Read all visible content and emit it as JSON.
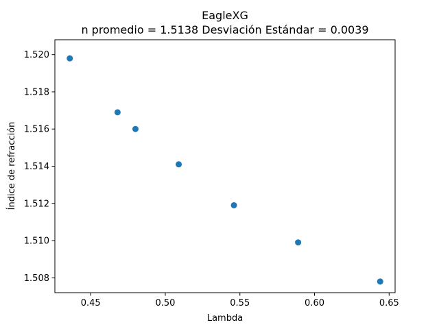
{
  "chart_data": {
    "type": "scatter",
    "title": "EagleXG",
    "subtitle": "n promedio = 1.5138  Desviación Estándar = 0.0039",
    "xlabel": "Lambda",
    "ylabel": "Índice de refracción",
    "xlim": [
      0.426,
      0.654
    ],
    "ylim": [
      1.5072,
      1.5208
    ],
    "xticks": [
      0.45,
      0.5,
      0.55,
      0.6,
      0.65
    ],
    "xtick_labels": [
      "0.45",
      "0.50",
      "0.55",
      "0.60",
      "0.65"
    ],
    "yticks": [
      1.508,
      1.51,
      1.512,
      1.514,
      1.516,
      1.518,
      1.52
    ],
    "ytick_labels": [
      "1.508",
      "1.510",
      "1.512",
      "1.514",
      "1.516",
      "1.518",
      "1.520"
    ],
    "grid": false,
    "legend": "none",
    "marker_color": "#1f77b4",
    "series": [
      {
        "points": [
          {
            "x": 0.436,
            "y": 1.5198
          },
          {
            "x": 0.468,
            "y": 1.5169
          },
          {
            "x": 0.48,
            "y": 1.516
          },
          {
            "x": 0.509,
            "y": 1.5141
          },
          {
            "x": 0.546,
            "y": 1.5119
          },
          {
            "x": 0.589,
            "y": 1.5099
          },
          {
            "x": 0.644,
            "y": 1.5078
          }
        ]
      }
    ]
  }
}
